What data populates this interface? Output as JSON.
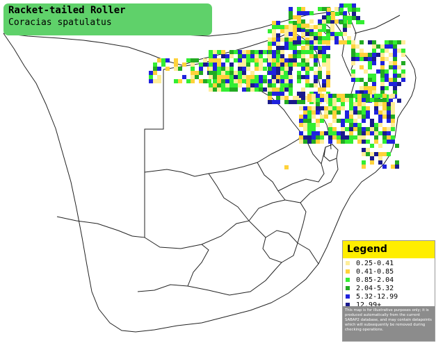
{
  "title": {
    "common_name": "Racket-tailed Roller",
    "scientific_name": "Coracias spatulatus"
  },
  "legend": {
    "heading": "Legend",
    "items": [
      {
        "label": "0.25-0.41",
        "color": "#ffee99"
      },
      {
        "label": "0.41-0.85",
        "color": "#ffd23a"
      },
      {
        "label": "0.85-2.04",
        "color": "#33ee33"
      },
      {
        "label": "2.04-5.32",
        "color": "#22aa22"
      },
      {
        "label": "5.32-12.99",
        "color": "#1f22dd"
      },
      {
        "label": "12.99+",
        "color": "#1a1a8c"
      }
    ],
    "note": "This map is for illustrative purposes only; it is produced automatically from the current SABAP2 database, and may contain datapoints which will subsequently be removed during checking operations."
  }
}
